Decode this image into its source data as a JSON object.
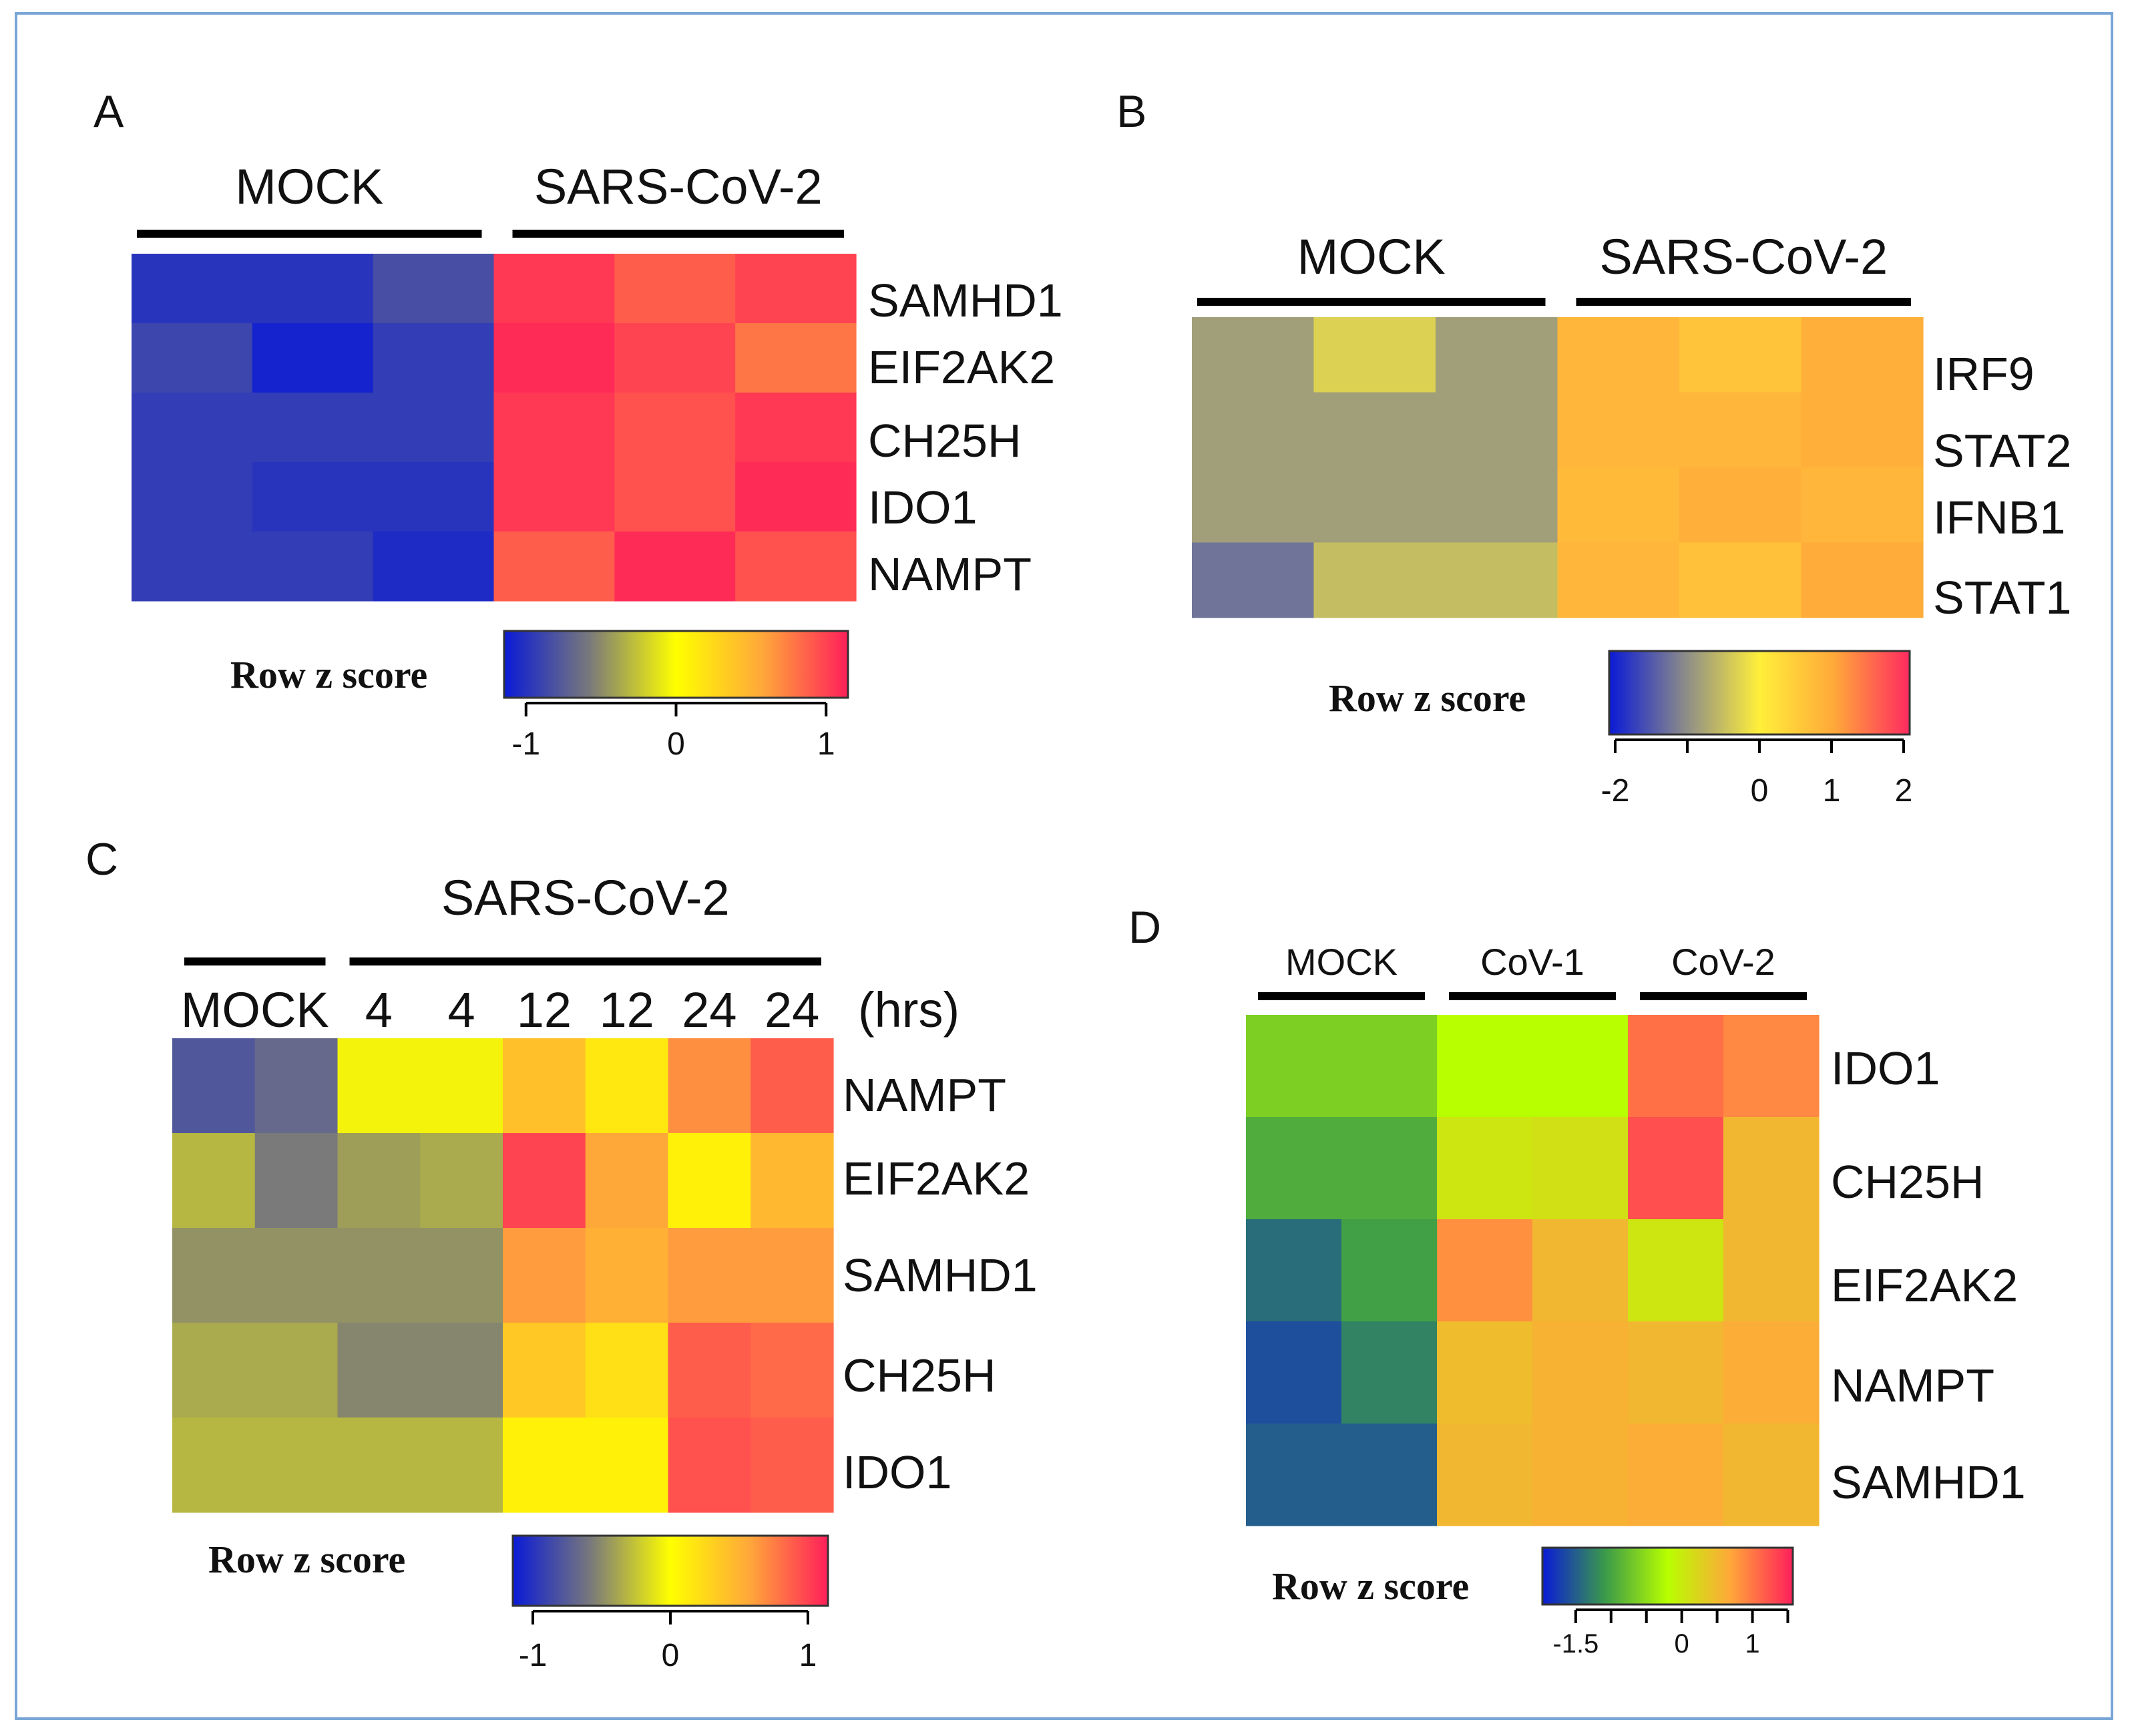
{
  "chart_data": [
    {
      "panel": "A",
      "type": "heatmap",
      "groups": [
        {
          "label": "MOCK",
          "columns": [
            0,
            1,
            2
          ]
        },
        {
          "label": "SARS-CoV-2",
          "columns": [
            3,
            4,
            5
          ]
        }
      ],
      "column_labels": [],
      "rows": [
        "SAMHD1",
        "EIF2AK2",
        "CH25H",
        "IDO1",
        "NAMPT"
      ],
      "values": [
        [
          -0.95,
          -0.95,
          -0.8,
          1.0,
          0.85,
          0.95
        ],
        [
          -0.85,
          -1.05,
          -0.9,
          1.05,
          0.95,
          0.75
        ],
        [
          -0.9,
          -0.9,
          -0.9,
          1.0,
          0.9,
          1.0
        ],
        [
          -0.9,
          -0.95,
          -0.95,
          1.0,
          0.9,
          1.05
        ],
        [
          -0.9,
          -0.9,
          -1.0,
          0.85,
          1.05,
          0.9
        ]
      ],
      "colorbar": {
        "title": "Row z score",
        "ticks": [
          -1,
          0,
          1
        ],
        "tick_labels": [
          "-1",
          "0",
          "1"
        ],
        "range": [
          -1.1,
          1.1
        ],
        "colors": [
          "#0a1ad6",
          "#7a7a7a",
          "#ffff00",
          "#ffa83a",
          "#ff1f5a"
        ]
      }
    },
    {
      "panel": "B",
      "type": "heatmap",
      "groups": [
        {
          "label": "MOCK",
          "columns": [
            0,
            1,
            2
          ]
        },
        {
          "label": "SARS-CoV-2",
          "columns": [
            3,
            4,
            5
          ]
        }
      ],
      "column_labels": [],
      "rows": [
        "IRF9",
        "STAT2",
        "IFNB1",
        "STAT1"
      ],
      "values": [
        [
          -0.8,
          -0.3,
          -0.8,
          0.8,
          0.6,
          0.9
        ],
        [
          -0.8,
          -0.8,
          -0.8,
          0.8,
          0.8,
          0.9
        ],
        [
          -0.8,
          -0.8,
          -0.8,
          0.75,
          0.9,
          0.8
        ],
        [
          -1.2,
          -0.5,
          -0.5,
          0.8,
          0.65,
          0.95
        ]
      ],
      "colorbar": {
        "title": "Row z score",
        "ticks": [
          -2,
          -1,
          0,
          1,
          2
        ],
        "tick_labels": [
          "-2",
          "",
          "0",
          "1",
          "2"
        ],
        "range": [
          -2,
          2
        ],
        "colors": [
          "#0a1ad6",
          "#8a8a8a",
          "#ffef3a",
          "#ffa83a",
          "#ff2a60"
        ]
      }
    },
    {
      "panel": "C",
      "type": "heatmap",
      "groups": [
        {
          "label": "MOCK",
          "columns": [
            0,
            1
          ]
        },
        {
          "label": "SARS-CoV-2",
          "columns": [
            2,
            3,
            4,
            5,
            6,
            7
          ]
        }
      ],
      "column_labels": [
        "",
        "",
        "4",
        "4",
        "12",
        "12",
        "24",
        "24"
      ],
      "unit_label": "(hrs)",
      "rows": [
        "NAMPT",
        "EIF2AK2",
        "SAMHD1",
        "CH25H",
        "IDO1"
      ],
      "values": [
        [
          -0.75,
          -0.65,
          -0.05,
          -0.05,
          0.4,
          0.15,
          0.65,
          0.85
        ],
        [
          -0.3,
          -0.55,
          -0.4,
          -0.35,
          0.95,
          0.55,
          0.08,
          0.45
        ],
        [
          -0.45,
          -0.45,
          -0.45,
          -0.45,
          0.6,
          0.5,
          0.6,
          0.6
        ],
        [
          -0.35,
          -0.35,
          -0.5,
          -0.5,
          0.35,
          0.2,
          0.85,
          0.8
        ],
        [
          -0.3,
          -0.3,
          -0.3,
          -0.3,
          0.08,
          0.08,
          0.9,
          0.85
        ]
      ],
      "colorbar": {
        "title": "Row z score",
        "ticks": [
          -1,
          0,
          1
        ],
        "tick_labels": [
          "-1",
          "0",
          "1"
        ],
        "range": [
          -1.1,
          1.1
        ],
        "colors": [
          "#0a1ad6",
          "#7a7a7a",
          "#ffff00",
          "#ffa83a",
          "#ff1f5a"
        ]
      }
    },
    {
      "panel": "D",
      "type": "heatmap",
      "groups": [
        {
          "label": "MOCK",
          "columns": [
            0,
            1
          ]
        },
        {
          "label": "CoV-1",
          "columns": [
            2,
            3
          ]
        },
        {
          "label": "CoV-2",
          "columns": [
            4,
            5
          ]
        }
      ],
      "column_labels": [],
      "rows": [
        "IDO1",
        "CH25H",
        "EIF2AK2",
        "NAMPT",
        "SAMHD1"
      ],
      "values": [
        [
          -0.6,
          -0.6,
          -0.2,
          -0.2,
          1.0,
          0.85
        ],
        [
          -0.9,
          -0.9,
          0.05,
          0.1,
          1.2,
          0.5
        ],
        [
          -1.35,
          -1.0,
          0.8,
          0.5,
          0.05,
          0.5
        ],
        [
          -1.55,
          -1.2,
          0.45,
          0.55,
          0.5,
          0.6
        ],
        [
          -1.45,
          -1.45,
          0.5,
          0.55,
          0.6,
          0.5
        ]
      ],
      "colorbar": {
        "title": "Row z score",
        "ticks": [
          -1.5,
          -1,
          -0.5,
          0,
          0.5,
          1,
          1.5
        ],
        "tick_labels": [
          "-1.5",
          "",
          "",
          "0",
          "",
          "1",
          ""
        ],
        "range": [
          -1.9,
          1.5
        ],
        "colors": [
          "#0a1ad6",
          "#3a9a4a",
          "#b8ff00",
          "#ffa83a",
          "#ff1f5a"
        ]
      }
    }
  ],
  "panel_letters": [
    "A",
    "B",
    "C",
    "D"
  ]
}
